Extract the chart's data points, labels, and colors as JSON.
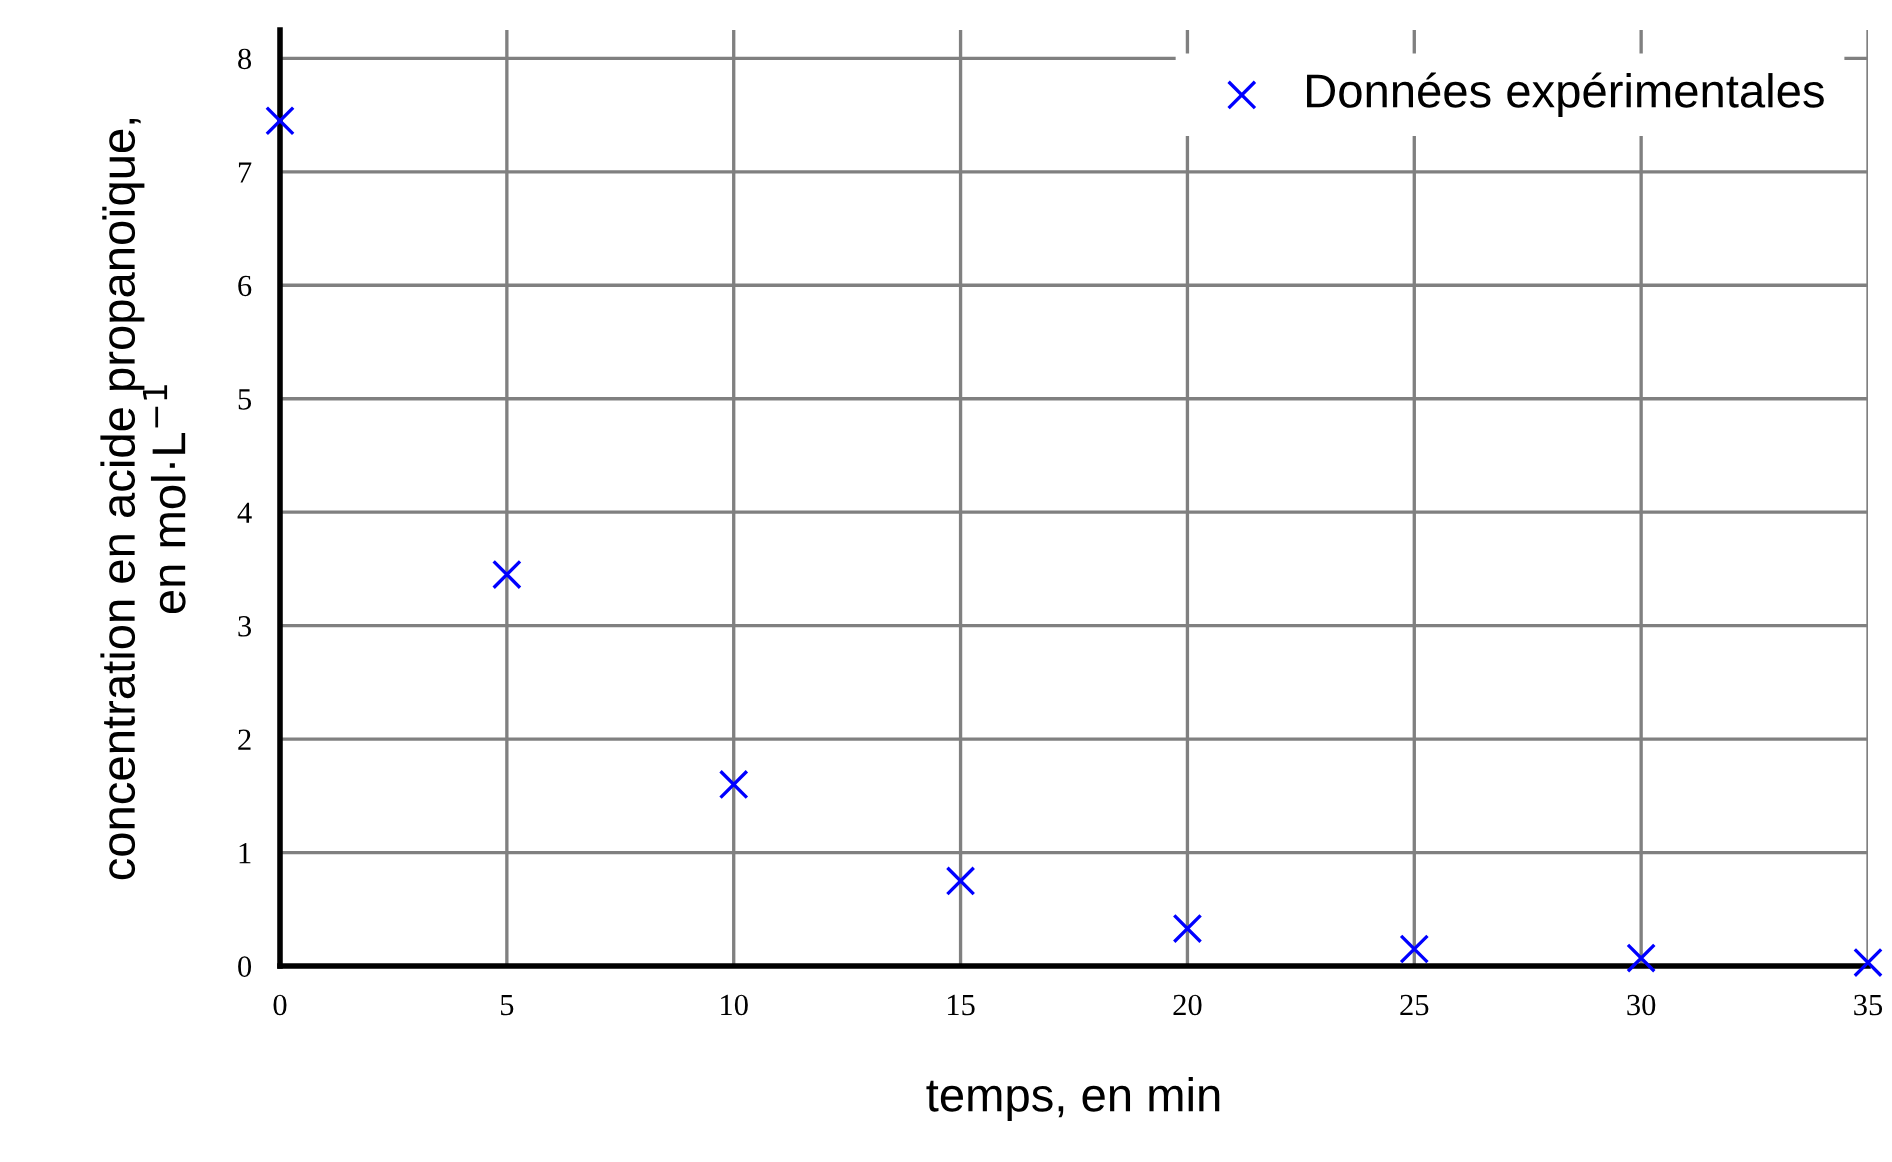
{
  "chart_data": {
    "type": "scatter",
    "xlabel": "temps, en min",
    "ylabel": "concentration en acide propanoïque,\nen mol·L$^{−1}$",
    "x": [
      0,
      5,
      10,
      15,
      20,
      25,
      30,
      35
    ],
    "series": [
      {
        "name": "Données expérimentales",
        "color": "#0000ff",
        "values": [
          7.45,
          3.45,
          1.6,
          0.75,
          0.33,
          0.15,
          0.07,
          0.03
        ]
      }
    ],
    "xlim": [
      0,
      35
    ],
    "ylim": [
      0,
      8.25
    ],
    "xticks": [
      0,
      5,
      10,
      15,
      20,
      25,
      30,
      35
    ],
    "yticks": [
      0,
      1,
      2,
      3,
      4,
      5,
      6,
      7,
      8
    ],
    "marker": "cross",
    "grid": true,
    "legend": "top right"
  }
}
